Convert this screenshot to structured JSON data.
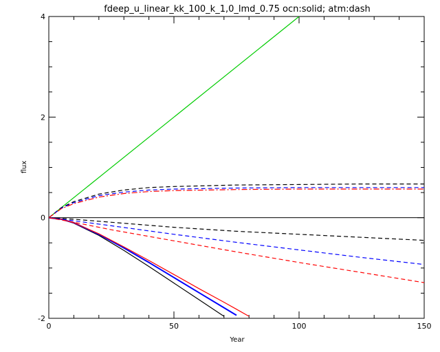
{
  "chart_data": {
    "type": "line",
    "title": "fdeep_u_linear_kk_100_k_1,0_lmd_0.75 ocn:solid; atm:dash",
    "xlabel": "Year",
    "ylabel": "flux",
    "xlim": [
      0,
      150
    ],
    "ylim": [
      -2,
      4
    ],
    "x_ticks": [
      0,
      50,
      100,
      150
    ],
    "x_tick_labels": [
      "0",
      "50",
      "100",
      "150"
    ],
    "y_ticks": [
      -2,
      0,
      2,
      4
    ],
    "y_tick_labels": [
      "-2",
      "0",
      "2",
      "4"
    ],
    "zero_line": true,
    "grid": false,
    "legend": "none",
    "series": [
      {
        "color": "#00cc00",
        "style": "solid",
        "x": [
          0,
          100
        ],
        "y": [
          0,
          4.0
        ]
      },
      {
        "color": "#000000",
        "style": "solid",
        "x": [
          0,
          5,
          10,
          20,
          30,
          40,
          50,
          60,
          70
        ],
        "y": [
          0,
          -0.03,
          -0.11,
          -0.35,
          -0.65,
          -0.97,
          -1.3,
          -1.63,
          -1.96
        ]
      },
      {
        "color": "#0000ff",
        "style": "solid",
        "x": [
          0,
          5,
          10,
          20,
          30,
          40,
          50,
          60,
          70,
          75
        ],
        "y": [
          0,
          -0.03,
          -0.1,
          -0.33,
          -0.6,
          -0.89,
          -1.19,
          -1.49,
          -1.79,
          -1.94
        ]
      },
      {
        "color": "#ff0000",
        "style": "solid",
        "x": [
          0,
          5,
          10,
          20,
          30,
          40,
          50,
          60,
          70,
          75,
          80
        ],
        "y": [
          0,
          -0.03,
          -0.1,
          -0.32,
          -0.58,
          -0.85,
          -1.13,
          -1.41,
          -1.68,
          -1.82,
          -1.96
        ]
      },
      {
        "color": "#000000",
        "style": "dash",
        "x": [
          0,
          5,
          10,
          20,
          30,
          40,
          50,
          75,
          100,
          125,
          150
        ],
        "y": [
          0,
          0.2,
          0.32,
          0.47,
          0.55,
          0.6,
          0.62,
          0.65,
          0.66,
          0.67,
          0.67
        ]
      },
      {
        "color": "#0000ff",
        "style": "dash",
        "x": [
          0,
          5,
          10,
          20,
          30,
          40,
          50,
          75,
          100,
          125,
          150
        ],
        "y": [
          0,
          0.19,
          0.3,
          0.44,
          0.51,
          0.55,
          0.57,
          0.59,
          0.6,
          0.6,
          0.6
        ]
      },
      {
        "color": "#ff0000",
        "style": "dashdot",
        "x": [
          0,
          5,
          10,
          20,
          30,
          40,
          50,
          75,
          100,
          125,
          150
        ],
        "y": [
          0,
          0.18,
          0.28,
          0.41,
          0.48,
          0.52,
          0.54,
          0.56,
          0.57,
          0.57,
          0.57
        ]
      },
      {
        "color": "#000000",
        "style": "dash",
        "x": [
          0,
          10,
          25,
          50,
          75,
          100,
          125,
          150
        ],
        "y": [
          0,
          -0.03,
          -0.09,
          -0.19,
          -0.27,
          -0.33,
          -0.39,
          -0.45
        ]
      },
      {
        "color": "#0000ff",
        "style": "dash",
        "x": [
          0,
          10,
          25,
          50,
          75,
          100,
          125,
          150
        ],
        "y": [
          0,
          -0.06,
          -0.16,
          -0.33,
          -0.49,
          -0.64,
          -0.79,
          -0.93
        ]
      },
      {
        "color": "#ff0000",
        "style": "dash",
        "x": [
          0,
          10,
          25,
          50,
          75,
          100,
          125,
          150
        ],
        "y": [
          0,
          -0.09,
          -0.24,
          -0.46,
          -0.68,
          -0.89,
          -1.09,
          -1.29
        ]
      }
    ]
  }
}
